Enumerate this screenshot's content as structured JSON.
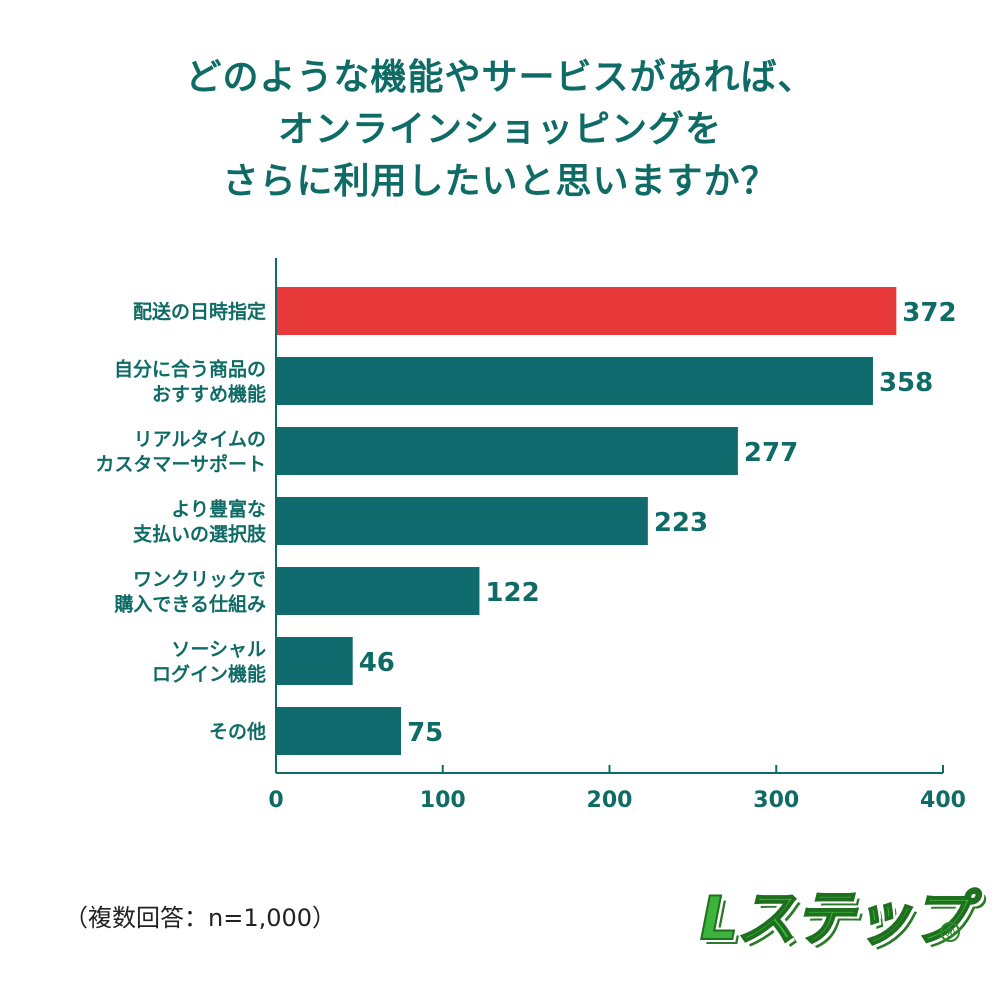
{
  "title_lines": [
    "どのような機能やサービスがあれば、",
    "オンラインショッピングを",
    "さらに利用したいと思いますか？"
  ],
  "note": "（複数回答：n=1,000）",
  "logo": {
    "text": "Lステップ",
    "mark": "®"
  },
  "colors": {
    "highlight": "#e83a3a",
    "bar": "#0f6b6e",
    "text": "#0f6b66",
    "logo": "#3cb43c"
  },
  "chart_data": {
    "type": "bar",
    "orientation": "horizontal",
    "categories": [
      [
        "配送の日時指定"
      ],
      [
        "自分に合う商品の",
        "おすすめ機能"
      ],
      [
        "リアルタイムの",
        "カスタマーサポート"
      ],
      [
        "より豊富な",
        "支払いの選択肢"
      ],
      [
        "ワンクリックで",
        "購入できる仕組み"
      ],
      [
        "ソーシャル",
        "ログイン機能"
      ],
      [
        "その他"
      ]
    ],
    "values": [
      372,
      358,
      277,
      223,
      122,
      46,
      75
    ],
    "highlight_index": 0,
    "xlim": [
      0,
      400
    ],
    "xticks": [
      0,
      100,
      200,
      300,
      400
    ],
    "grid": false
  }
}
